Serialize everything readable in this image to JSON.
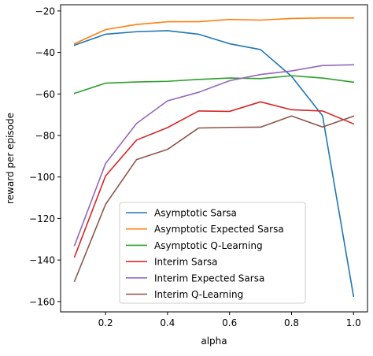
{
  "chart_data": {
    "type": "line",
    "title": "",
    "xlabel": "alpha",
    "ylabel": "reward per episode",
    "xlim": [
      0.055,
      1.045
    ],
    "ylim": [
      -165,
      -17
    ],
    "x": [
      0.1,
      0.2,
      0.3,
      0.4,
      0.5,
      0.6,
      0.7,
      0.8,
      0.9,
      1.0
    ],
    "xticks": [
      0.2,
      0.4,
      0.6,
      0.8,
      1.0
    ],
    "xtick_labels": [
      "0.2",
      "0.4",
      "0.6",
      "0.8",
      "1.0"
    ],
    "yticks": [
      -20,
      -40,
      -60,
      -80,
      -100,
      -120,
      -140,
      -160
    ],
    "ytick_labels": [
      "−20",
      "−40",
      "−60",
      "−80",
      "−100",
      "−120",
      "−140",
      "−160"
    ],
    "grid": false,
    "legend_position": "lower-center",
    "series": [
      {
        "name": "Asymptotic Sarsa",
        "color": "#1f77b4",
        "values": [
          -36.5,
          -31.2,
          -30.0,
          -29.5,
          -31.2,
          -35.8,
          -38.6,
          -51.5,
          -70.5,
          -157.5
        ]
      },
      {
        "name": "Asymptotic Expected Sarsa",
        "color": "#ff7f0e",
        "values": [
          -35.8,
          -29.0,
          -26.5,
          -25.2,
          -25.2,
          -24.1,
          -24.4,
          -23.6,
          -23.4,
          -23.4
        ]
      },
      {
        "name": "Asymptotic Q-Learning",
        "color": "#2ca02c",
        "values": [
          -59.7,
          -54.8,
          -54.2,
          -53.9,
          -53.0,
          -52.3,
          -52.6,
          -51.2,
          -52.3,
          -54.3
        ]
      },
      {
        "name": "Interim Sarsa",
        "color": "#d62728",
        "values": [
          -138.5,
          -99.5,
          -82.2,
          -76.2,
          -68.2,
          -68.4,
          -63.8,
          -67.6,
          -68.2,
          -74.4
        ]
      },
      {
        "name": "Interim Expected Sarsa",
        "color": "#9467bd",
        "values": [
          -133.0,
          -93.5,
          -74.2,
          -63.3,
          -59.2,
          -53.6,
          -50.6,
          -48.9,
          -46.3,
          -45.9
        ]
      },
      {
        "name": "Interim Q-Learning",
        "color": "#8c564b",
        "values": [
          -150.2,
          -113.2,
          -91.6,
          -86.7,
          -76.4,
          -76.1,
          -76.0,
          -70.6,
          -75.9,
          -70.7
        ]
      }
    ]
  }
}
